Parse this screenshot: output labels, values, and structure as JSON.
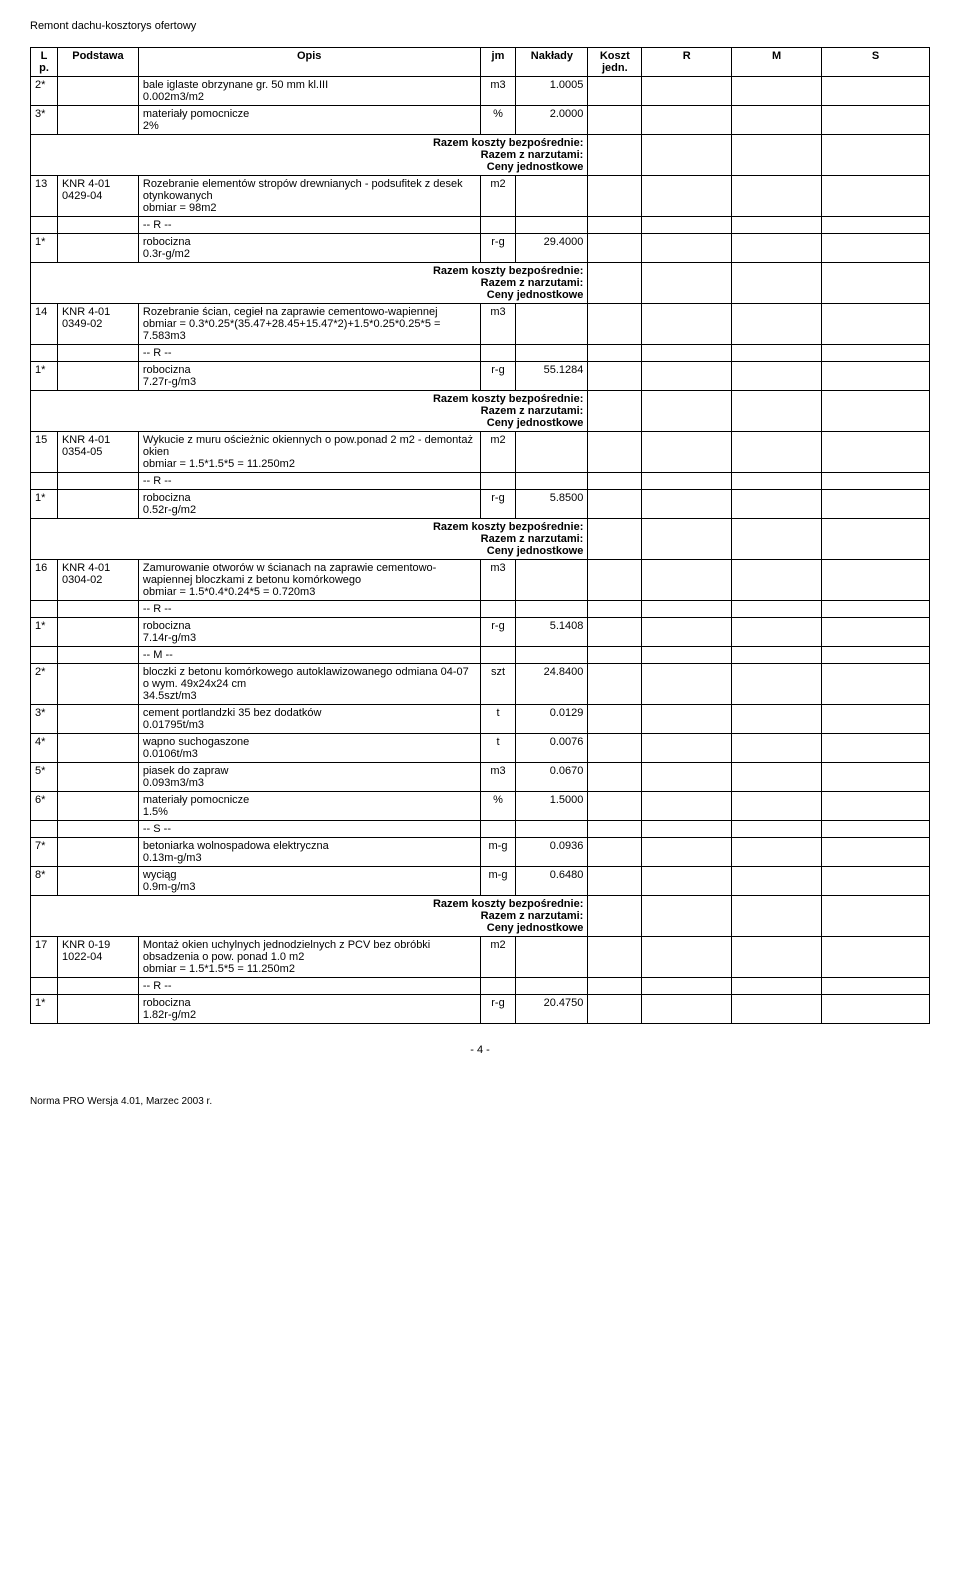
{
  "doc_title": "Remont dachu-kosztorys ofertowy",
  "columns": {
    "lp": "L p.",
    "podstawa": "Podstawa",
    "opis": "Opis",
    "jm": "jm",
    "naklady": "Nakłady",
    "koszt": "Koszt jedn.",
    "r": "R",
    "m": "M",
    "s": "S"
  },
  "razem_labels": {
    "bezposrednie": "Razem koszty bezpośrednie:",
    "narzuty": "Razem z narzutami:",
    "ceny": "Ceny jednostkowe"
  },
  "marker_r": "-- R --",
  "marker_m": "-- M --",
  "marker_s": "-- S --",
  "rows": [
    {
      "lp": "2*",
      "opis": "bale iglaste obrzynane gr. 50 mm kl.III\n0.002m3/m2",
      "jm": "m3",
      "naklady": "1.0005"
    },
    {
      "lp": "3*",
      "opis": "materiały pomocnicze\n2%",
      "jm": "%",
      "naklady": "2.0000"
    }
  ],
  "item13": {
    "lp": "13",
    "podstawa": "KNR 4-01\n0429-04",
    "opis": "Rozebranie elementów stropów drewnianych - podsufitek z desek otynkowanych\nobmiar = 98m2",
    "jm": "m2",
    "r": {
      "lp": "1*",
      "label": "robocizna",
      "rate": "0.3r-g/m2",
      "jm": "r-g",
      "val": "29.4000"
    }
  },
  "item14": {
    "lp": "14",
    "podstawa": "KNR 4-01\n0349-02",
    "opis": "Rozebranie ścian, cegieł na zaprawie cementowo-wapiennej\nobmiar = 0.3*0.25*(35.47+28.45+15.47*2)+1.5*0.25*0.25*5 = 7.583m3",
    "jm": "m3",
    "r": {
      "lp": "1*",
      "label": "robocizna",
      "rate": "7.27r-g/m3",
      "jm": "r-g",
      "val": "55.1284"
    }
  },
  "item15": {
    "lp": "15",
    "podstawa": "KNR 4-01\n0354-05",
    "opis": "Wykucie z muru ościeżnic okiennych o pow.ponad 2 m2 - demontaż okien\nobmiar = 1.5*1.5*5 = 11.250m2",
    "jm": "m2",
    "r": {
      "lp": "1*",
      "label": "robocizna",
      "rate": "0.52r-g/m2",
      "jm": "r-g",
      "val": "5.8500"
    }
  },
  "item16": {
    "lp": "16",
    "podstawa": "KNR 4-01\n0304-02",
    "opis": "Zamurowanie otworów w ścianach na zaprawie cementowo-wapiennej bloczkami z betonu komórkowego\nobmiar = 1.5*0.4*0.24*5 = 0.720m3",
    "jm": "m3",
    "r": {
      "lp": "1*",
      "label": "robocizna",
      "rate": "7.14r-g/m3",
      "jm": "r-g",
      "val": "5.1408"
    },
    "m": [
      {
        "lp": "2*",
        "label": "bloczki z betonu komórkowego autoklawizowanego odmiana 04-07 o wym. 49x24x24 cm",
        "rate": "34.5szt/m3",
        "jm": "szt",
        "val": "24.8400"
      },
      {
        "lp": "3*",
        "label": "cement portlandzki 35 bez dodatków",
        "rate": "0.01795t/m3",
        "jm": "t",
        "val": "0.0129"
      },
      {
        "lp": "4*",
        "label": "wapno suchogaszone",
        "rate": "0.0106t/m3",
        "jm": "t",
        "val": "0.0076"
      },
      {
        "lp": "5*",
        "label": "piasek do zapraw",
        "rate": "0.093m3/m3",
        "jm": "m3",
        "val": "0.0670"
      },
      {
        "lp": "6*",
        "label": "materiały pomocnicze",
        "rate": "1.5%",
        "jm": "%",
        "val": "1.5000"
      }
    ],
    "s": [
      {
        "lp": "7*",
        "label": "betoniarka wolnospadowa elektryczna",
        "rate": "0.13m-g/m3",
        "jm": "m-g",
        "val": "0.0936"
      },
      {
        "lp": "8*",
        "label": "wyciąg",
        "rate": "0.9m-g/m3",
        "jm": "m-g",
        "val": "0.6480"
      }
    ]
  },
  "item17": {
    "lp": "17",
    "podstawa": "KNR 0-19\n1022-04",
    "opis": "Montaż okien uchylnych jednodzielnych z PCV bez obróbki obsadzenia o pow. ponad 1.0 m2\nobmiar = 1.5*1.5*5 = 11.250m2",
    "jm": "m2",
    "r": {
      "lp": "1*",
      "label": "robocizna",
      "rate": "1.82r-g/m2",
      "jm": "r-g",
      "val": "20.4750"
    }
  },
  "page_num": "- 4 -",
  "footer": "Norma PRO Wersja 4.01, Marzec 2003 r."
}
